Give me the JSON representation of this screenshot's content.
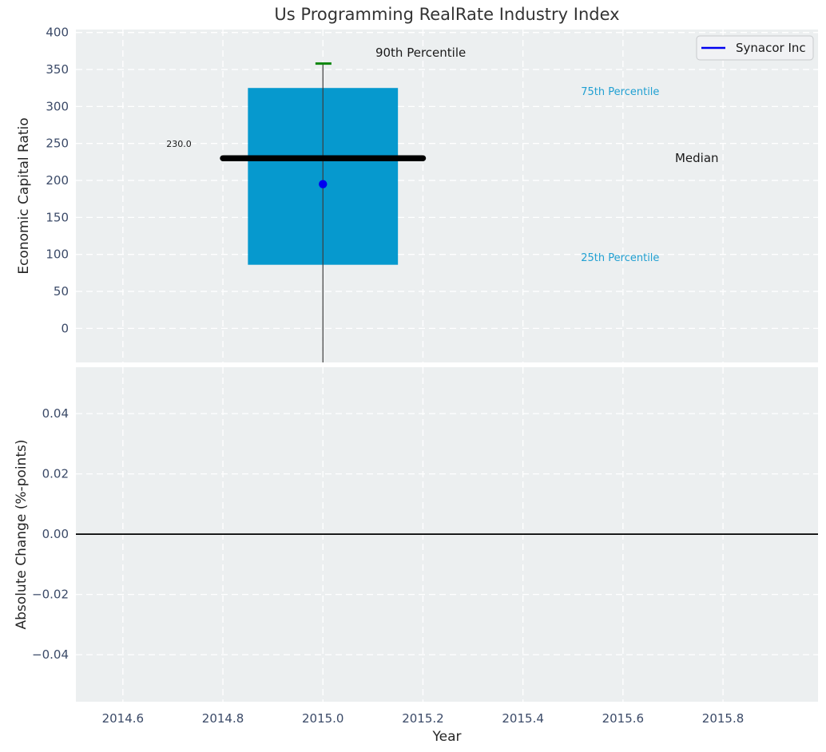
{
  "title": "Us Programming RealRate Industry Index",
  "colors": {
    "figure_bg": "#ffffff",
    "axes_bg": "#eceff0",
    "grid": "#ffffff",
    "tick_label": "#3b4a68",
    "axis_label": "#262626",
    "title": "#333333",
    "box_fill": "#0699ce",
    "whisker": "#3d3d3d",
    "cap_90th": "#0c860c",
    "median": "#000000",
    "marker": "#0000f0",
    "percentile_label": "#21a0d2",
    "annotation_dark": "#1a1a1a",
    "zero_line": "#000000",
    "legend_bg": "#f1f2f4",
    "legend_border": "#c7c9cc",
    "legend_line": "#0000f0",
    "legend_text": "#1a1a1a"
  },
  "chart_data": [
    {
      "id": "industry-index-boxplot",
      "type": "box",
      "ylabel": "Economic Capital Ratio",
      "xlim": [
        2014.506,
        2015.99
      ],
      "ylim": [
        -46,
        404
      ],
      "grid": true,
      "yticks": {
        "values": [
          0,
          50,
          100,
          150,
          200,
          250,
          300,
          350,
          400
        ],
        "labels": [
          "0",
          "50",
          "100",
          "150",
          "200",
          "250",
          "300",
          "350",
          "400"
        ]
      },
      "xticks": {
        "values": [
          2014.6,
          2014.8,
          2015.0,
          2015.2,
          2015.4,
          2015.6,
          2015.8
        ],
        "labels": []
      },
      "boxes": [
        {
          "x_center": 2015.0,
          "box_left": 2014.85,
          "box_right": 2015.15,
          "q1": 86,
          "q3": 325,
          "median": 230,
          "median_label": "230.0",
          "median_line_left": 2014.8,
          "median_line_right": 2015.2,
          "p90": 358,
          "p90_cap_left": 2014.985,
          "p90_cap_right": 2015.017,
          "whisker_low_clipped_at_axis_bottom": true
        }
      ],
      "points": [
        {
          "label": "Synacor Inc",
          "x": 2015.0,
          "y": 195
        }
      ],
      "annotations": [
        {
          "text": "230.0",
          "x": 2014.712,
          "y": 249.0,
          "anchor": "middle",
          "size": 11,
          "color_key": "annotation_dark"
        },
        {
          "text": "90th Percentile",
          "x": 2015.105,
          "y": 372.7,
          "anchor": "start",
          "size": 15,
          "color_key": "annotation_dark"
        },
        {
          "text": "75th Percentile",
          "x": 2015.516,
          "y": 319.3,
          "anchor": "start",
          "size": 13,
          "color_key": "percentile_label"
        },
        {
          "text": "Median",
          "x": 2015.704,
          "y": 230.0,
          "anchor": "start",
          "size": 15,
          "color_key": "annotation_dark"
        },
        {
          "text": "25th Percentile",
          "x": 2015.516,
          "y": 94.8,
          "anchor": "start",
          "size": 13,
          "color_key": "percentile_label"
        }
      ],
      "legend": {
        "label": "Synacor Inc",
        "loc": "upper right"
      }
    },
    {
      "id": "absolute-change",
      "type": "line",
      "ylabel": "Absolute Change (%-points)",
      "xlabel": "Year",
      "xlim": [
        2014.506,
        2015.99
      ],
      "ylim": [
        -0.0556,
        0.0554
      ],
      "grid": true,
      "yticks": {
        "values": [
          0.04,
          0.02,
          0.0,
          -0.02,
          -0.04
        ],
        "labels": [
          "0.04",
          "0.02",
          "0.00",
          "−0.02",
          "−0.04"
        ]
      },
      "xticks": {
        "values": [
          2014.6,
          2014.8,
          2015.0,
          2015.2,
          2015.4,
          2015.6,
          2015.8
        ],
        "labels": [
          "2014.6",
          "2014.8",
          "2015.0",
          "2015.2",
          "2015.4",
          "2015.6",
          "2015.8"
        ]
      },
      "zero_line": 0.0,
      "series": []
    }
  ]
}
